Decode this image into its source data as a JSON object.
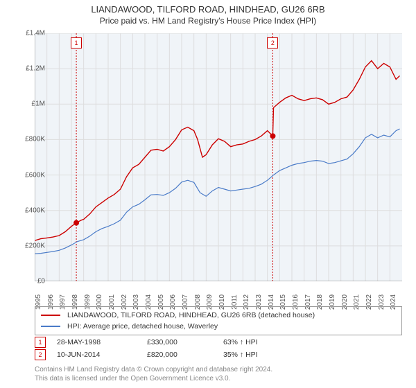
{
  "title": {
    "line1": "LIANDAWOOD, TILFORD ROAD, HINDHEAD, GU26 6RB",
    "line2": "Price paid vs. HM Land Registry's House Price Index (HPI)"
  },
  "chart": {
    "type": "line",
    "background_color": "#ffffff",
    "plot_background_color": "#f0f4f8",
    "grid_color": "#dddddd",
    "axis_color": "#888888",
    "ylim": [
      0,
      1400000
    ],
    "ytick_step": 200000,
    "yticks": [
      "£0",
      "£200K",
      "£400K",
      "£600K",
      "£800K",
      "£1M",
      "£1.2M",
      "£1.4M"
    ],
    "xlim": [
      1995,
      2025
    ],
    "xticks": [
      1995,
      1996,
      1997,
      1998,
      1999,
      2000,
      2001,
      2002,
      2003,
      2004,
      2005,
      2006,
      2007,
      2008,
      2009,
      2010,
      2011,
      2012,
      2013,
      2014,
      2015,
      2016,
      2017,
      2018,
      2019,
      2020,
      2021,
      2022,
      2023,
      2024
    ],
    "series": [
      {
        "name": "property",
        "label": "LIANDAWOOD, TILFORD ROAD, HINDHEAD, GU26 6RB (detached house)",
        "color": "#cc0000",
        "line_width": 1.4,
        "data": [
          [
            1995,
            230000
          ],
          [
            1995.5,
            240000
          ],
          [
            1996,
            245000
          ],
          [
            1996.5,
            250000
          ],
          [
            1997,
            258000
          ],
          [
            1997.5,
            280000
          ],
          [
            1998,
            310000
          ],
          [
            1998.4,
            330000
          ],
          [
            1998.8,
            345000
          ],
          [
            1999,
            350000
          ],
          [
            1999.5,
            380000
          ],
          [
            2000,
            420000
          ],
          [
            2000.5,
            445000
          ],
          [
            2001,
            470000
          ],
          [
            2001.5,
            490000
          ],
          [
            2002,
            520000
          ],
          [
            2002.5,
            590000
          ],
          [
            2003,
            640000
          ],
          [
            2003.5,
            660000
          ],
          [
            2004,
            700000
          ],
          [
            2004.5,
            740000
          ],
          [
            2005,
            745000
          ],
          [
            2005.5,
            735000
          ],
          [
            2006,
            760000
          ],
          [
            2006.5,
            800000
          ],
          [
            2007,
            855000
          ],
          [
            2007.5,
            870000
          ],
          [
            2008,
            850000
          ],
          [
            2008.3,
            800000
          ],
          [
            2008.7,
            700000
          ],
          [
            2009,
            715000
          ],
          [
            2009.5,
            770000
          ],
          [
            2010,
            805000
          ],
          [
            2010.5,
            790000
          ],
          [
            2011,
            760000
          ],
          [
            2011.5,
            770000
          ],
          [
            2012,
            775000
          ],
          [
            2012.5,
            790000
          ],
          [
            2013,
            800000
          ],
          [
            2013.5,
            820000
          ],
          [
            2014,
            850000
          ],
          [
            2014.44,
            820000
          ],
          [
            2014.5,
            980000
          ],
          [
            2015,
            1010000
          ],
          [
            2015.5,
            1035000
          ],
          [
            2016,
            1050000
          ],
          [
            2016.5,
            1030000
          ],
          [
            2017,
            1020000
          ],
          [
            2017.5,
            1030000
          ],
          [
            2018,
            1035000
          ],
          [
            2018.5,
            1025000
          ],
          [
            2019,
            1000000
          ],
          [
            2019.5,
            1010000
          ],
          [
            2020,
            1030000
          ],
          [
            2020.5,
            1040000
          ],
          [
            2021,
            1080000
          ],
          [
            2021.5,
            1140000
          ],
          [
            2022,
            1210000
          ],
          [
            2022.5,
            1245000
          ],
          [
            2023,
            1200000
          ],
          [
            2023.5,
            1230000
          ],
          [
            2024,
            1210000
          ],
          [
            2024.5,
            1140000
          ],
          [
            2024.8,
            1160000
          ]
        ]
      },
      {
        "name": "hpi",
        "label": "HPI: Average price, detached house, Waverley",
        "color": "#4a7bc8",
        "line_width": 1.2,
        "data": [
          [
            1995,
            155000
          ],
          [
            1995.5,
            158000
          ],
          [
            1996,
            163000
          ],
          [
            1996.5,
            168000
          ],
          [
            1997,
            175000
          ],
          [
            1997.5,
            188000
          ],
          [
            1998,
            205000
          ],
          [
            1998.5,
            225000
          ],
          [
            1999,
            235000
          ],
          [
            1999.5,
            255000
          ],
          [
            2000,
            280000
          ],
          [
            2000.5,
            298000
          ],
          [
            2001,
            310000
          ],
          [
            2001.5,
            325000
          ],
          [
            2002,
            345000
          ],
          [
            2002.5,
            390000
          ],
          [
            2003,
            420000
          ],
          [
            2003.5,
            435000
          ],
          [
            2004,
            460000
          ],
          [
            2004.5,
            488000
          ],
          [
            2005,
            490000
          ],
          [
            2005.5,
            485000
          ],
          [
            2006,
            500000
          ],
          [
            2006.5,
            525000
          ],
          [
            2007,
            560000
          ],
          [
            2007.5,
            570000
          ],
          [
            2008,
            558000
          ],
          [
            2008.5,
            500000
          ],
          [
            2009,
            480000
          ],
          [
            2009.5,
            510000
          ],
          [
            2010,
            530000
          ],
          [
            2010.5,
            520000
          ],
          [
            2011,
            510000
          ],
          [
            2011.5,
            515000
          ],
          [
            2012,
            520000
          ],
          [
            2012.5,
            525000
          ],
          [
            2013,
            535000
          ],
          [
            2013.5,
            548000
          ],
          [
            2014,
            570000
          ],
          [
            2014.5,
            600000
          ],
          [
            2015,
            625000
          ],
          [
            2015.5,
            640000
          ],
          [
            2016,
            655000
          ],
          [
            2016.5,
            665000
          ],
          [
            2017,
            670000
          ],
          [
            2017.5,
            678000
          ],
          [
            2018,
            682000
          ],
          [
            2018.5,
            678000
          ],
          [
            2019,
            665000
          ],
          [
            2019.5,
            670000
          ],
          [
            2020,
            680000
          ],
          [
            2020.5,
            690000
          ],
          [
            2021,
            720000
          ],
          [
            2021.5,
            760000
          ],
          [
            2022,
            810000
          ],
          [
            2022.5,
            830000
          ],
          [
            2023,
            810000
          ],
          [
            2023.5,
            825000
          ],
          [
            2024,
            815000
          ],
          [
            2024.5,
            850000
          ],
          [
            2024.8,
            860000
          ]
        ]
      }
    ],
    "markers": [
      {
        "id": "1",
        "x": 1998.4,
        "y": 330000,
        "vline_color": "#cc0000",
        "dot_color": "#cc0000"
      },
      {
        "id": "2",
        "x": 2014.44,
        "y": 820000,
        "vline_color": "#cc0000",
        "dot_color": "#cc0000"
      }
    ]
  },
  "legend": {
    "border_color": "#999999"
  },
  "data_rows": [
    {
      "id": "1",
      "date": "28-MAY-1998",
      "price": "£330,000",
      "pct": "63% ↑ HPI"
    },
    {
      "id": "2",
      "date": "10-JUN-2014",
      "price": "£820,000",
      "pct": "35% ↑ HPI"
    }
  ],
  "footer": {
    "line1": "Contains HM Land Registry data © Crown copyright and database right 2024.",
    "line2": "This data is licensed under the Open Government Licence v3.0."
  }
}
